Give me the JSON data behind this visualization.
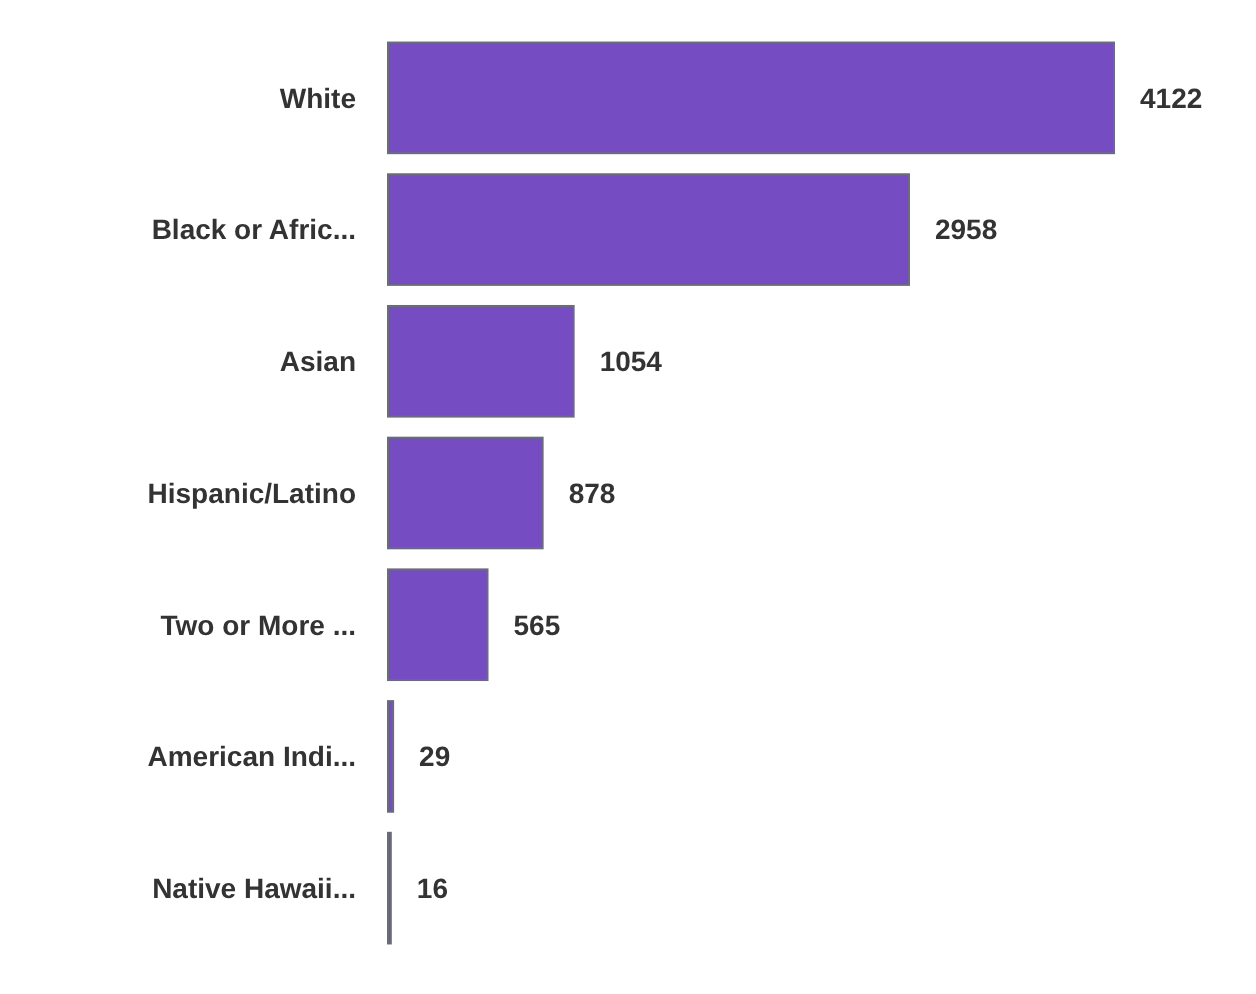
{
  "chart_data": {
    "type": "bar",
    "orientation": "horizontal",
    "categories": [
      "White",
      "Black or Afric...",
      "Asian",
      "Hispanic/Latino",
      "Two or More ...",
      "American Indi...",
      "Native Hawaii..."
    ],
    "values": [
      4122,
      2958,
      1054,
      878,
      565,
      29,
      16
    ],
    "color": "#754cc2",
    "data_labels": true,
    "tick_labels": "y"
  }
}
